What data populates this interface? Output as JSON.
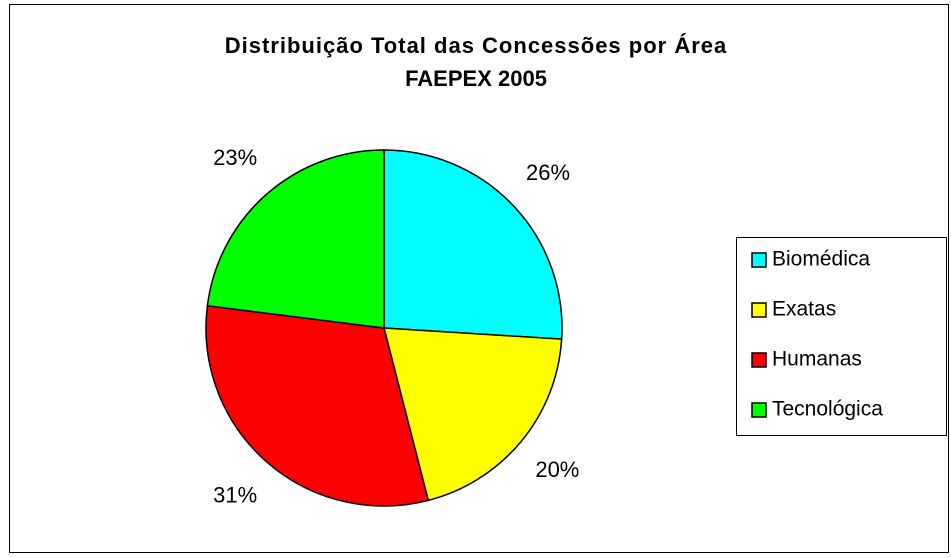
{
  "chart_data": {
    "type": "pie",
    "title": "Distribuição Total das Concessões por Área",
    "subtitle": "FAEPEX 2005",
    "categories": [
      "Biomédica",
      "Exatas",
      "Humanas",
      "Tecnológica"
    ],
    "values": [
      26,
      20,
      31,
      23
    ],
    "value_labels": [
      "26%",
      "20%",
      "31%",
      "23%"
    ],
    "colors": [
      "#00ffff",
      "#ffff00",
      "#ff0000",
      "#00ff00"
    ],
    "legend": "right"
  }
}
